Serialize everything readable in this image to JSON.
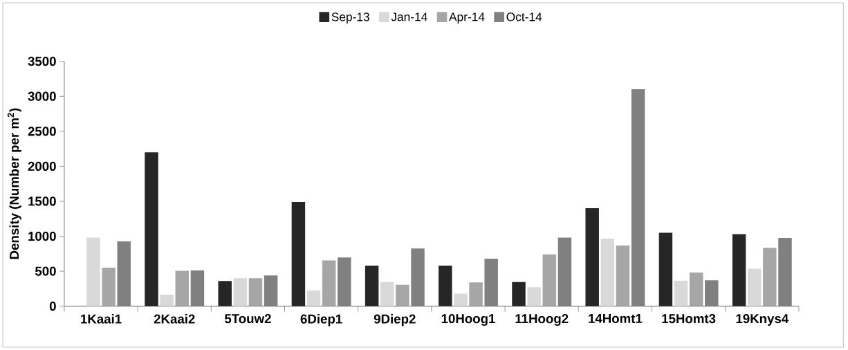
{
  "chart_data": {
    "type": "bar",
    "ylabel": "Density (Number per m$^{2}$)",
    "categories": [
      "1Kaai1",
      "2Kaai2",
      "5Touw2",
      "6Diep1",
      "9Diep2",
      "10Hoog1",
      "11Hoog2",
      "14Homt1",
      "15Homt3",
      "19Knys4"
    ],
    "series": [
      {
        "name": "Sep-13",
        "color": "#262626",
        "values": [
          null,
          2200,
          360,
          1490,
          580,
          580,
          345,
          1400,
          1050,
          1030
        ]
      },
      {
        "name": "Jan-14",
        "color": "#d9d9d9",
        "values": [
          980,
          165,
          400,
          225,
          345,
          180,
          270,
          965,
          365,
          535
        ]
      },
      {
        "name": "Apr-14",
        "color": "#a6a6a6",
        "values": [
          550,
          505,
          400,
          655,
          305,
          340,
          740,
          870,
          480,
          835
        ]
      },
      {
        "name": "Oct-14",
        "color": "#808080",
        "values": [
          925,
          510,
          440,
          695,
          825,
          680,
          980,
          3100,
          370,
          975
        ]
      }
    ],
    "ylim": [
      0,
      3500
    ],
    "yticks": [
      0,
      500,
      1000,
      1500,
      2000,
      2500,
      3000,
      3500
    ],
    "legend": "top",
    "grid": false
  }
}
